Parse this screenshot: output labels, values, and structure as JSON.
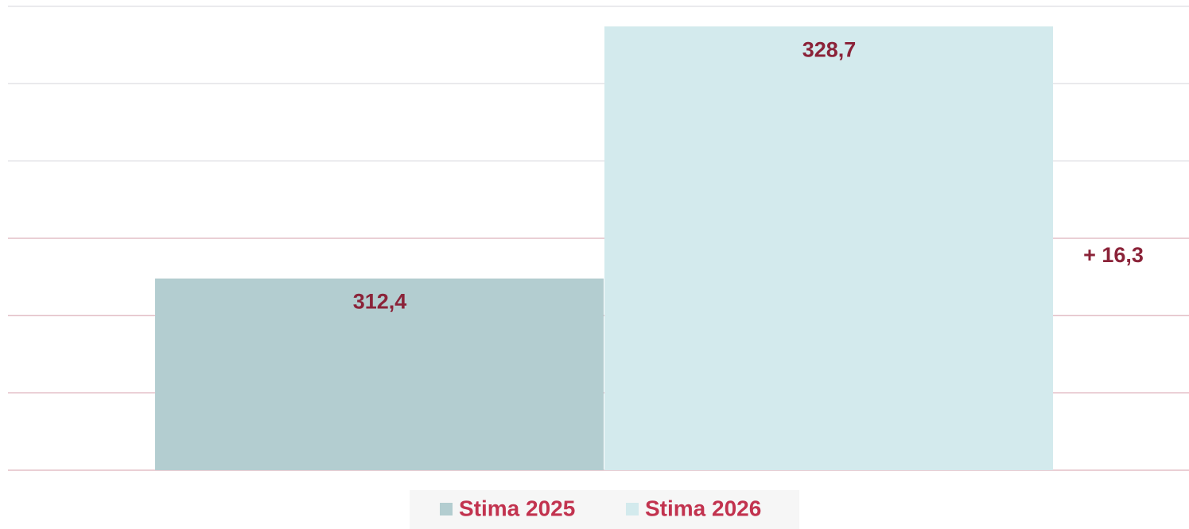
{
  "chart_data": {
    "type": "bar",
    "categories": [
      null
    ],
    "series": [
      {
        "name": "Stima 2025",
        "color": "#b3cdd0",
        "values": [
          312.4
        ],
        "value_labels": [
          "312,4"
        ]
      },
      {
        "name": "Stima 2026",
        "color": "#d3eaed",
        "values": [
          328.7
        ],
        "value_labels": [
          "328,7"
        ]
      }
    ],
    "annotations": [
      {
        "text": "+ 16,3"
      }
    ],
    "ylim": [
      300,
      330
    ],
    "yticks": [
      300,
      305,
      310,
      315,
      320,
      325,
      330
    ],
    "grid": true,
    "legend": "bottom"
  }
}
